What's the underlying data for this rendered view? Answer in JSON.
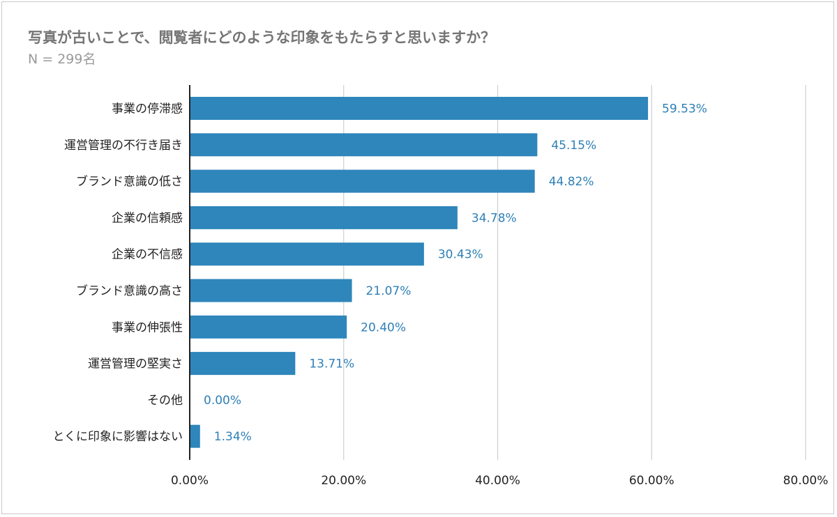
{
  "chart_data": {
    "type": "bar",
    "orientation": "horizontal",
    "title": "写真が古いことで、閲覧者にどのような印象をもたらすと思いますか？",
    "subtitle": "N = 299名",
    "categories": [
      "事業の停滞感",
      "運営管理の不行き届き",
      "ブランド意識の低さ",
      "企業の信頼感",
      "企業の不信感",
      "ブランド意識の高さ",
      "事業の伸張性",
      "運営管理の堅実さ",
      "その他",
      "とくに印象に影響はない"
    ],
    "values": [
      59.53,
      45.15,
      44.82,
      34.78,
      30.43,
      21.07,
      20.4,
      13.71,
      0.0,
      1.34
    ],
    "value_labels": [
      "59.53%",
      "45.15%",
      "44.82%",
      "34.78%",
      "30.43%",
      "21.07%",
      "20.40%",
      "13.71%",
      "0.00%",
      "1.34%"
    ],
    "xlim": [
      0,
      80
    ],
    "x_ticks": [
      0,
      20,
      40,
      60,
      80
    ],
    "x_tick_labels": [
      "0.00%",
      "20.00%",
      "40.00%",
      "60.00%",
      "80.00%"
    ],
    "grid": true,
    "legend": "none",
    "colors": {
      "bar": "#2e86bb",
      "value_label": "#2e7fb6",
      "grid": "#cfcfcf"
    }
  }
}
